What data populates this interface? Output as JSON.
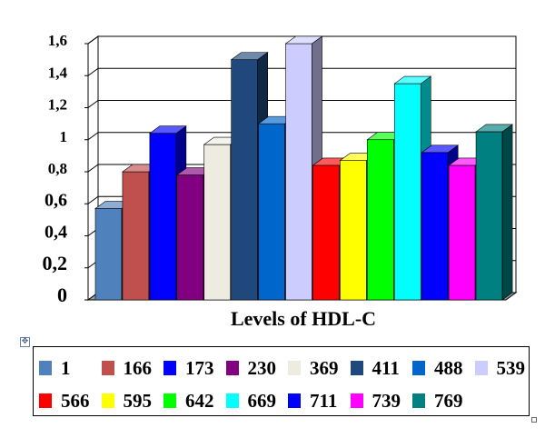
{
  "chart_data": {
    "type": "bar",
    "xlabel": "Levels of HDL-C",
    "ylabel": "",
    "ylim": [
      0,
      1.6
    ],
    "yticks": [
      "0",
      "0,2",
      "0,4",
      "0,6",
      "0,8",
      "1",
      "1,2",
      "1,4",
      "1,6"
    ],
    "grid": true,
    "legend_position": "bottom",
    "series": [
      {
        "name": "1",
        "values": [
          0.57
        ],
        "color": "#4f81bd"
      },
      {
        "name": "166",
        "values": [
          0.8
        ],
        "color": "#c0504d"
      },
      {
        "name": "173",
        "values": [
          1.04
        ],
        "color": "#0000ff"
      },
      {
        "name": "230",
        "values": [
          0.78
        ],
        "color": "#800080"
      },
      {
        "name": "369",
        "values": [
          0.97
        ],
        "color": "#eeece1"
      },
      {
        "name": "411",
        "values": [
          1.5
        ],
        "color": "#1f497d"
      },
      {
        "name": "488",
        "values": [
          1.1
        ],
        "color": "#0066cc"
      },
      {
        "name": "539",
        "values": [
          1.6
        ],
        "color": "#ccccff"
      },
      {
        "name": "566",
        "values": [
          0.84
        ],
        "color": "#ff0000"
      },
      {
        "name": "595",
        "values": [
          0.87
        ],
        "color": "#ffff00"
      },
      {
        "name": "642",
        "values": [
          1.0
        ],
        "color": "#00ff00"
      },
      {
        "name": "669",
        "values": [
          1.35
        ],
        "color": "#00ffff"
      },
      {
        "name": "711",
        "values": [
          0.92
        ],
        "color": "#0000ff"
      },
      {
        "name": "739",
        "values": [
          0.84
        ],
        "color": "#ff00ff"
      },
      {
        "name": "769",
        "values": [
          1.05
        ],
        "color": "#008080"
      }
    ]
  },
  "ui": {
    "move_handle_glyph": "✥"
  }
}
